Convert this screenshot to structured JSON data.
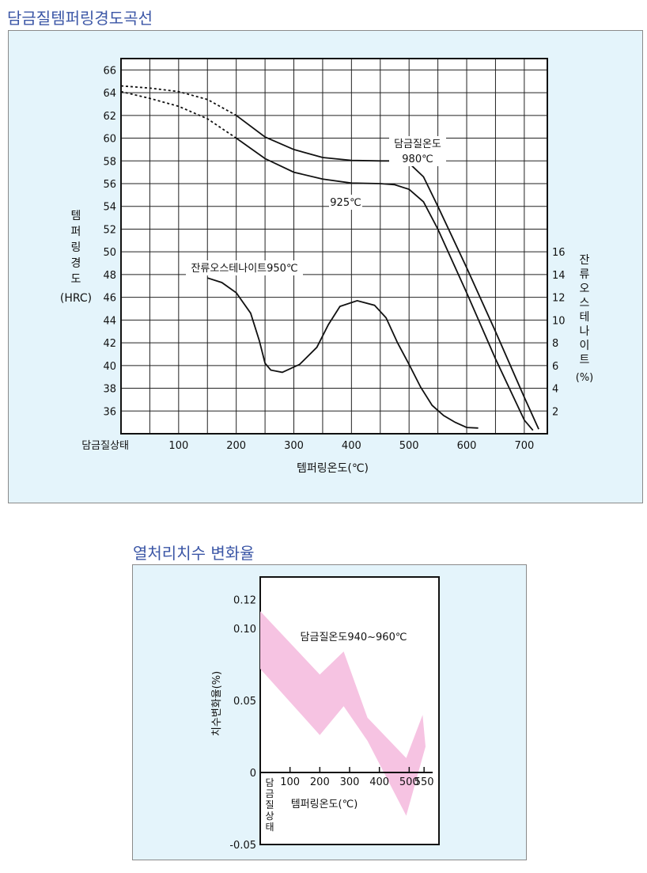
{
  "chart_data": [
    {
      "type": "line",
      "title": "담금질템퍼링경도곡선",
      "xlabel": "템퍼링온도(℃)",
      "ylabel_lines": [
        "템",
        "퍼",
        "링",
        "경",
        "도",
        "(HRC)"
      ],
      "y2label_lines": [
        "잔",
        "류",
        "오",
        "스",
        "테",
        "나",
        "이",
        "트",
        "(%)"
      ],
      "x_tick_labels": [
        "담금질상태",
        "100",
        "200",
        "300",
        "400",
        "500",
        "600",
        "700"
      ],
      "x_ticks": [
        0,
        100,
        200,
        300,
        400,
        500,
        600,
        700
      ],
      "xlim": [
        0,
        740
      ],
      "ylim": [
        34,
        67
      ],
      "y_ticks": [
        36,
        38,
        40,
        42,
        44,
        46,
        48,
        50,
        52,
        54,
        56,
        58,
        60,
        62,
        64,
        66
      ],
      "y2lim": [
        0,
        33
      ],
      "y2_ticks": [
        2,
        4,
        6,
        8,
        10,
        12,
        14,
        16
      ],
      "grid": true,
      "series": [
        {
          "name": "담금질온도 980℃",
          "label_lines": [
            "담금질온도",
            "980℃"
          ],
          "axis": "left",
          "dashed_until": 200,
          "points": [
            [
              0,
              64.6
            ],
            [
              50,
              64.4
            ],
            [
              100,
              64.1
            ],
            [
              150,
              63.4
            ],
            [
              200,
              62
            ],
            [
              250,
              60.1
            ],
            [
              300,
              59
            ],
            [
              350,
              58.3
            ],
            [
              400,
              58.05
            ],
            [
              450,
              58
            ],
            [
              475,
              58
            ],
            [
              500,
              57.8
            ],
            [
              525,
              56.6
            ],
            [
              550,
              54
            ],
            [
              600,
              48.6
            ],
            [
              650,
              43
            ],
            [
              700,
              37.2
            ],
            [
              725,
              34.4
            ]
          ]
        },
        {
          "name": "925℃",
          "label_lines": [
            "925℃"
          ],
          "axis": "left",
          "dashed_until": 200,
          "points": [
            [
              0,
              64.1
            ],
            [
              50,
              63.5
            ],
            [
              100,
              62.8
            ],
            [
              150,
              61.7
            ],
            [
              200,
              60
            ],
            [
              250,
              58.2
            ],
            [
              300,
              57
            ],
            [
              350,
              56.4
            ],
            [
              400,
              56.05
            ],
            [
              450,
              56
            ],
            [
              475,
              55.9
            ],
            [
              500,
              55.5
            ],
            [
              525,
              54.4
            ],
            [
              550,
              52
            ],
            [
              600,
              46.4
            ],
            [
              650,
              40.6
            ],
            [
              700,
              35.2
            ],
            [
              715,
              34.3
            ]
          ]
        },
        {
          "name": "잔류오스테나이트950℃",
          "label_lines": [
            "잔류오스테나이트950℃"
          ],
          "axis": "right",
          "points": [
            [
              150,
              13.7
            ],
            [
              175,
              13.3
            ],
            [
              200,
              12.4
            ],
            [
              225,
              10.6
            ],
            [
              240,
              8.2
            ],
            [
              250,
              6.2
            ],
            [
              260,
              5.6
            ],
            [
              280,
              5.4
            ],
            [
              310,
              6.1
            ],
            [
              340,
              7.6
            ],
            [
              360,
              9.6
            ],
            [
              380,
              11.2
            ],
            [
              410,
              11.7
            ],
            [
              440,
              11.3
            ],
            [
              460,
              10.2
            ],
            [
              480,
              8
            ],
            [
              500,
              6.1
            ],
            [
              520,
              4.1
            ],
            [
              540,
              2.5
            ],
            [
              560,
              1.6
            ],
            [
              580,
              1
            ],
            [
              600,
              0.55
            ],
            [
              620,
              0.5
            ]
          ]
        }
      ]
    },
    {
      "type": "area",
      "title": "열처리치수 변화율",
      "xlabel": "템퍼링온도(℃)",
      "ylabel": "치수변화율(%)",
      "x_tick_labels": [
        "100",
        "200",
        "300",
        "400",
        "500",
        "550"
      ],
      "x_ticks": [
        100,
        200,
        300,
        400,
        500,
        550
      ],
      "x0_label_lines": [
        "담",
        "금",
        "질",
        "상",
        "태"
      ],
      "y_tick_labels": [
        "-0.05",
        "0",
        "0.05",
        "0.10",
        "0.12"
      ],
      "y_ticks": [
        -0.05,
        0,
        0.05,
        0.1,
        0.12
      ],
      "xlim": [
        0,
        600
      ],
      "ylim": [
        -0.05,
        0.12
      ],
      "annotation": "담금질온도940~960℃",
      "color": "#f6c3e2",
      "band": {
        "upper": [
          [
            0,
            0.112
          ],
          [
            200,
            0.068
          ],
          [
            280,
            0.084
          ],
          [
            360,
            0.038
          ],
          [
            490,
            0.01
          ],
          [
            545,
            0.04
          ],
          [
            555,
            0.018
          ]
        ],
        "lower": [
          [
            0,
            0.072
          ],
          [
            200,
            0.026
          ],
          [
            280,
            0.046
          ],
          [
            360,
            0.022
          ],
          [
            490,
            -0.03
          ],
          [
            555,
            0.018
          ]
        ]
      }
    }
  ]
}
